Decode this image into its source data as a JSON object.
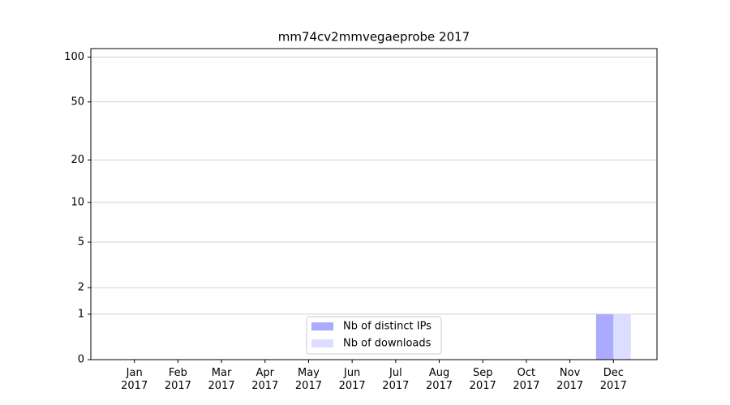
{
  "chart_data": {
    "type": "bar",
    "title": "mm74cv2mmvegaeprobe 2017",
    "categories": [
      "Jan\n2017",
      "Feb\n2017",
      "Mar\n2017",
      "Apr\n2017",
      "May\n2017",
      "Jun\n2017",
      "Jul\n2017",
      "Aug\n2017",
      "Sep\n2017",
      "Oct\n2017",
      "Nov\n2017",
      "Dec\n2017"
    ],
    "series": [
      {
        "name": "Nb of distinct IPs",
        "color": "#aaaaff",
        "values": [
          0,
          0,
          0,
          0,
          0,
          0,
          0,
          0,
          0,
          0,
          0,
          1
        ]
      },
      {
        "name": "Nb of downloads",
        "color": "#ddddff",
        "values": [
          0,
          0,
          0,
          0,
          0,
          0,
          0,
          0,
          0,
          0,
          0,
          1
        ]
      }
    ],
    "yscale": "log1p",
    "ylim": [
      0,
      114
    ],
    "yticks": [
      0,
      1,
      2,
      5,
      10,
      20,
      50,
      100
    ],
    "grid": true,
    "legend": "lower center"
  }
}
